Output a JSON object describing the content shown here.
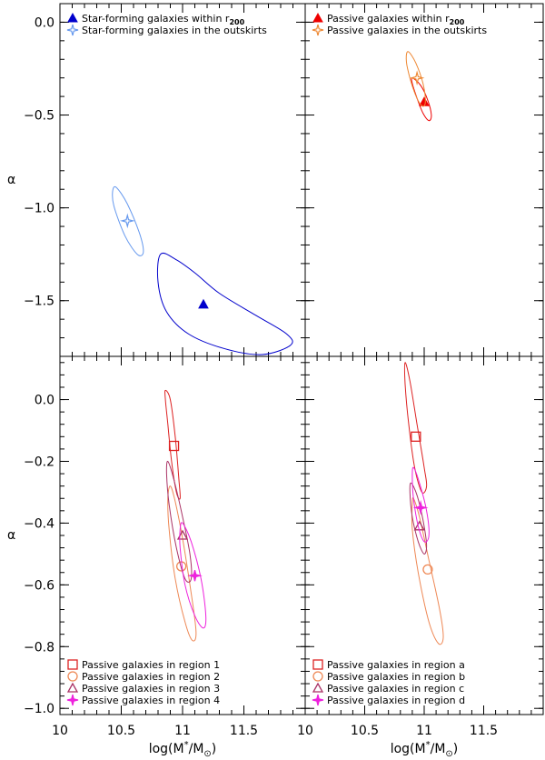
{
  "chart_data": [
    {
      "type": "scatter",
      "panel": "top-left",
      "xlim": [
        10,
        12
      ],
      "ylim": [
        -1.8,
        0.1
      ],
      "xticks": [
        10,
        10.5,
        11,
        11.5
      ],
      "yticks": [
        0,
        -0.5,
        -1,
        -1.5
      ],
      "yticklabels": [
        "0.0",
        "−0.5",
        "−1.0",
        "−1.5"
      ],
      "xticklabels": [],
      "ylabel": "α",
      "xlabel": "",
      "legend": "top-left",
      "series": [
        {
          "name": "Star-forming galaxies within r",
          "name_sub": "200",
          "color": "#0000cc",
          "marker": "triangle",
          "x": 11.17,
          "y": -1.52,
          "contour": [
            [
              10.82,
              -1.25
            ],
            [
              10.95,
              -1.28
            ],
            [
              11.1,
              -1.35
            ],
            [
              11.3,
              -1.46
            ],
            [
              11.6,
              -1.58
            ],
            [
              11.85,
              -1.68
            ],
            [
              11.88,
              -1.74
            ],
            [
              11.65,
              -1.79
            ],
            [
              11.35,
              -1.76
            ],
            [
              11.05,
              -1.68
            ],
            [
              10.87,
              -1.56
            ],
            [
              10.8,
              -1.4
            ]
          ]
        },
        {
          "name": "Star-forming galaxies in the outskirts",
          "color": "#6699ee",
          "marker": "star",
          "x": 10.55,
          "y": -1.07,
          "contour": [
            [
              10.46,
              -0.89
            ],
            [
              10.55,
              -0.98
            ],
            [
              10.65,
              -1.14
            ],
            [
              10.68,
              -1.24
            ],
            [
              10.63,
              -1.25
            ],
            [
              10.53,
              -1.15
            ],
            [
              10.44,
              -0.99
            ],
            [
              10.43,
              -0.91
            ]
          ]
        }
      ]
    },
    {
      "type": "scatter",
      "panel": "top-right",
      "xlim": [
        10,
        12
      ],
      "ylim": [
        -1.8,
        0.1
      ],
      "xticks": [
        10,
        10.5,
        11,
        11.5
      ],
      "yticks": [
        0,
        -0.5,
        -1,
        -1.5
      ],
      "yticklabels": [],
      "xticklabels": [],
      "legend": "top-left",
      "series": [
        {
          "name": "Passive galaxies within r",
          "name_sub": "200",
          "color": "#ee0000",
          "marker": "triangle",
          "x": 11.0,
          "y": -0.43,
          "contour": [
            [
              10.9,
              -0.3
            ],
            [
              10.97,
              -0.34
            ],
            [
              11.03,
              -0.42
            ],
            [
              11.06,
              -0.5
            ],
            [
              11.04,
              -0.53
            ],
            [
              10.99,
              -0.49
            ],
            [
              10.94,
              -0.41
            ],
            [
              10.9,
              -0.33
            ]
          ]
        },
        {
          "name": "Passive galaxies in the outskirts",
          "color": "#ee8833",
          "marker": "star",
          "x": 10.94,
          "y": -0.3,
          "contour": [
            [
              10.87,
              -0.16
            ],
            [
              10.93,
              -0.22
            ],
            [
              10.99,
              -0.33
            ],
            [
              11.01,
              -0.43
            ],
            [
              10.98,
              -0.45
            ],
            [
              10.92,
              -0.38
            ],
            [
              10.86,
              -0.25
            ],
            [
              10.85,
              -0.18
            ]
          ]
        }
      ]
    },
    {
      "type": "scatter",
      "panel": "bottom-left",
      "xlim": [
        10,
        12
      ],
      "ylim": [
        -1.02,
        0.14
      ],
      "xticks": [
        10,
        10.5,
        11,
        11.5
      ],
      "yticks": [
        0,
        -0.2,
        -0.4,
        -0.6,
        -0.8,
        -1
      ],
      "yticklabels": [
        "0.0",
        "−0.2",
        "−0.4",
        "−0.6",
        "−0.8",
        "−1.0"
      ],
      "xticklabels": [
        "10",
        "10.5",
        "11",
        "11.5"
      ],
      "ylabel": "α",
      "xlabel": "log(M",
      "legend": "bottom-left",
      "series": [
        {
          "name": "Passive galaxies in region 1",
          "color": "#dd2222",
          "marker": "square",
          "x": 10.93,
          "y": -0.15,
          "contour": [
            [
              10.86,
              0.03
            ],
            [
              10.9,
              0.0
            ],
            [
              10.94,
              -0.12
            ],
            [
              10.97,
              -0.26
            ],
            [
              10.98,
              -0.32
            ],
            [
              10.95,
              -0.3
            ],
            [
              10.91,
              -0.2
            ],
            [
              10.88,
              -0.08
            ],
            [
              10.86,
              0.0
            ]
          ]
        },
        {
          "name": "Passive galaxies in region 2",
          "color": "#ee8855",
          "marker": "circle",
          "x": 10.99,
          "y": -0.54,
          "contour": [
            [
              10.9,
              -0.28
            ],
            [
              10.94,
              -0.33
            ],
            [
              11.0,
              -0.45
            ],
            [
              11.06,
              -0.6
            ],
            [
              11.11,
              -0.75
            ],
            [
              11.08,
              -0.78
            ],
            [
              11.02,
              -0.72
            ],
            [
              10.94,
              -0.58
            ],
            [
              10.89,
              -0.42
            ],
            [
              10.88,
              -0.32
            ]
          ]
        },
        {
          "name": "Passive galaxies in region 3",
          "color": "#aa3366",
          "marker": "triangle-open",
          "x": 11.0,
          "y": -0.44,
          "contour": [
            [
              10.88,
              -0.2
            ],
            [
              10.93,
              -0.26
            ],
            [
              11.0,
              -0.38
            ],
            [
              11.06,
              -0.5
            ],
            [
              11.07,
              -0.58
            ],
            [
              11.02,
              -0.58
            ],
            [
              10.95,
              -0.48
            ],
            [
              10.89,
              -0.34
            ],
            [
              10.87,
              -0.24
            ]
          ]
        },
        {
          "name": "Passive galaxies in region 4",
          "color": "#ee22dd",
          "marker": "star-filled",
          "x": 11.1,
          "y": -0.57,
          "contour": [
            [
              11.0,
              -0.4
            ],
            [
              11.07,
              -0.46
            ],
            [
              11.15,
              -0.58
            ],
            [
              11.19,
              -0.7
            ],
            [
              11.17,
              -0.74
            ],
            [
              11.1,
              -0.7
            ],
            [
              11.02,
              -0.6
            ],
            [
              10.98,
              -0.48
            ],
            [
              10.98,
              -0.42
            ]
          ]
        }
      ]
    },
    {
      "type": "scatter",
      "panel": "bottom-right",
      "xlim": [
        10,
        12
      ],
      "ylim": [
        -1.02,
        0.14
      ],
      "xticks": [
        10,
        10.5,
        11,
        11.5
      ],
      "yticks": [
        0,
        -0.2,
        -0.4,
        -0.6,
        -0.8,
        -1
      ],
      "yticklabels": [],
      "xticklabels": [
        "10",
        "10.5",
        "11",
        "11.5"
      ],
      "xlabel": "log(M",
      "legend": "bottom-left",
      "series": [
        {
          "name": "Passive galaxies in region a",
          "color": "#dd2222",
          "marker": "square",
          "x": 10.93,
          "y": -0.12,
          "contour": [
            [
              10.84,
              0.12
            ],
            [
              10.88,
              0.06
            ],
            [
              10.94,
              -0.08
            ],
            [
              11.0,
              -0.22
            ],
            [
              11.02,
              -0.28
            ],
            [
              10.98,
              -0.3
            ],
            [
              10.92,
              -0.22
            ],
            [
              10.87,
              -0.08
            ],
            [
              10.84,
              0.05
            ]
          ]
        },
        {
          "name": "Passive galaxies in region b",
          "color": "#ee8855",
          "marker": "circle",
          "x": 11.03,
          "y": -0.55,
          "contour": [
            [
              10.91,
              -0.32
            ],
            [
              10.96,
              -0.38
            ],
            [
              11.04,
              -0.52
            ],
            [
              11.13,
              -0.68
            ],
            [
              11.16,
              -0.77
            ],
            [
              11.12,
              -0.79
            ],
            [
              11.04,
              -0.72
            ],
            [
              10.95,
              -0.56
            ],
            [
              10.9,
              -0.42
            ],
            [
              10.9,
              -0.34
            ]
          ]
        },
        {
          "name": "Passive galaxies in region c",
          "color": "#aa3366",
          "marker": "triangle-open",
          "x": 10.96,
          "y": -0.41,
          "contour": [
            [
              10.89,
              -0.27
            ],
            [
              10.94,
              -0.31
            ],
            [
              10.99,
              -0.39
            ],
            [
              11.02,
              -0.47
            ],
            [
              11.0,
              -0.5
            ],
            [
              10.95,
              -0.46
            ],
            [
              10.9,
              -0.38
            ],
            [
              10.88,
              -0.3
            ]
          ]
        },
        {
          "name": "Passive galaxies in region d",
          "color": "#ee22dd",
          "marker": "star-filled",
          "x": 10.97,
          "y": -0.35,
          "contour": [
            [
              10.91,
              -0.22
            ],
            [
              10.96,
              -0.27
            ],
            [
              11.02,
              -0.36
            ],
            [
              11.04,
              -0.44
            ],
            [
              11.0,
              -0.46
            ],
            [
              10.95,
              -0.41
            ],
            [
              10.91,
              -0.32
            ],
            [
              10.9,
              -0.25
            ]
          ]
        }
      ]
    }
  ],
  "xlabel_sup": "*",
  "xlabel_tail": "/M",
  "xlabel_sub": "⊙",
  "xlabel_close": ")"
}
